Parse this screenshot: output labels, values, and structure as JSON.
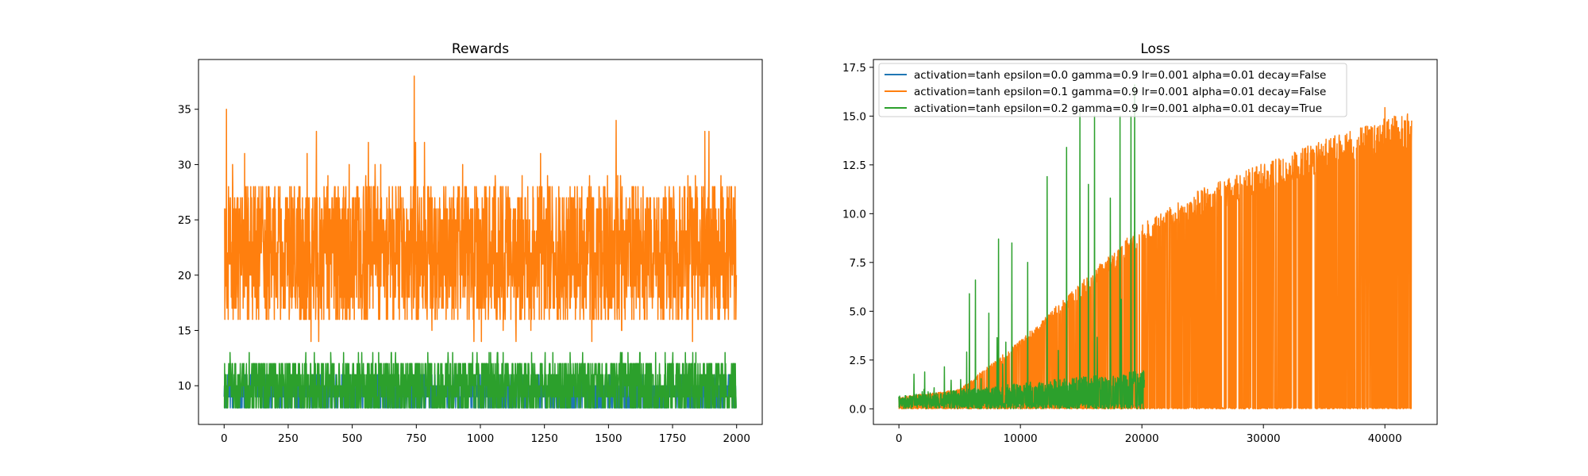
{
  "chart_data": [
    {
      "type": "line",
      "title": "Rewards",
      "xlabel": "",
      "ylabel": "",
      "xlim": [
        -100,
        2100
      ],
      "ylim": [
        6.5,
        39.5
      ],
      "xticks": [
        0,
        250,
        500,
        750,
        1000,
        1250,
        1500,
        1750,
        2000
      ],
      "xtick_labels": [
        "0",
        "250",
        "500",
        "750",
        "1000",
        "1250",
        "1500",
        "1750",
        "2000"
      ],
      "yticks": [
        10,
        15,
        20,
        25,
        30,
        35
      ],
      "ytick_labels": [
        "10",
        "15",
        "20",
        "25",
        "30",
        "35"
      ],
      "grid": false,
      "series_count": 3,
      "series": [
        {
          "color": "#1f77b4",
          "length": 2000,
          "baseline": 9.5,
          "low": 8,
          "high": 12
        },
        {
          "color": "#ff7f0e",
          "length": 2000,
          "baseline": 20.5,
          "low": 13,
          "high": 38,
          "notable_peak": {
            "x": 742,
            "y": 38
          }
        },
        {
          "color": "#2ca02c",
          "length": 2000,
          "baseline": 10,
          "low": 8,
          "high": 13
        }
      ]
    },
    {
      "type": "line",
      "title": "Loss",
      "xlabel": "",
      "ylabel": "",
      "xlim": [
        -2100,
        44300
      ],
      "ylim": [
        -0.8,
        17.9
      ],
      "xticks": [
        0,
        10000,
        20000,
        30000,
        40000
      ],
      "xtick_labels": [
        "0",
        "10000",
        "20000",
        "30000",
        "40000"
      ],
      "yticks": [
        0.0,
        2.5,
        5.0,
        7.5,
        10.0,
        12.5,
        15.0,
        17.5
      ],
      "ytick_labels": [
        "0.0",
        "2.5",
        "5.0",
        "7.5",
        "10.0",
        "12.5",
        "15.0",
        "17.5"
      ],
      "grid": false,
      "legend_position": "upper-left",
      "series": [
        {
          "name": "activation=tanh epsilon=0.0 gamma=0.9 lr=0.001 alpha=0.01 decay=False",
          "color": "#1f77b4",
          "x_end": 20000,
          "y_range": [
            0.0,
            0.3
          ]
        },
        {
          "name": "activation=tanh epsilon=0.1 gamma=0.9 lr=0.001 alpha=0.01 decay=False",
          "color": "#ff7f0e",
          "x_end": 42200,
          "y_envelope": [
            [
              0,
              0.6
            ],
            [
              5000,
              1.0
            ],
            [
              10000,
              3.5
            ],
            [
              15000,
              6.5
            ],
            [
              20000,
              9.5
            ],
            [
              25000,
              11.3
            ],
            [
              30000,
              12.6
            ],
            [
              35000,
              13.8
            ],
            [
              40000,
              14.9
            ],
            [
              42200,
              15.2
            ]
          ],
          "y_peak": 16.2
        },
        {
          "name": "activation=tanh epsilon=0.2 gamma=0.9 lr=0.001 alpha=0.01 decay=True",
          "color": "#2ca02c",
          "x_end": 20200,
          "y_range": [
            0.0,
            2.0
          ],
          "spikes": [
            [
              5800,
              5.9
            ],
            [
              6300,
              6.6
            ],
            [
              7400,
              4.9
            ],
            [
              8200,
              8.7
            ],
            [
              9300,
              8.5
            ],
            [
              10600,
              7.5
            ],
            [
              12200,
              11.9
            ],
            [
              13800,
              13.4
            ],
            [
              14900,
              15.4
            ],
            [
              15600,
              11.5
            ],
            [
              16100,
              15.0
            ],
            [
              17400,
              10.8
            ],
            [
              18200,
              15.0
            ],
            [
              19100,
              15.0
            ],
            [
              19400,
              16.6
            ]
          ]
        }
      ]
    }
  ]
}
